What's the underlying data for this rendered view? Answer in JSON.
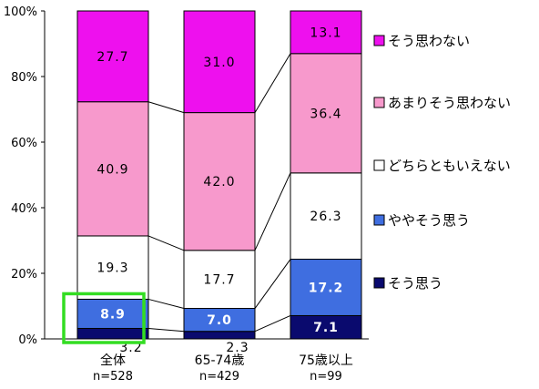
{
  "chart_data": {
    "type": "bar",
    "stacked": true,
    "percent": true,
    "ylim": [
      0,
      100
    ],
    "yticks": [
      "0%",
      "20%",
      "40%",
      "60%",
      "80%",
      "100%"
    ],
    "categories": [
      "全体",
      "65-74歳",
      "75歳以上"
    ],
    "category_n": [
      "n=528",
      "n=429",
      "n=99"
    ],
    "series": [
      {
        "name": "そう思う",
        "color": "#0a0a6e",
        "label_color": "#ffffff",
        "values": [
          3.2,
          2.3,
          7.1
        ],
        "labels": [
          "3.2",
          "2.3",
          "7.1"
        ]
      },
      {
        "name": "ややそう思う",
        "color": "#3f6ee0",
        "label_color": "#ffffff",
        "values": [
          8.9,
          7.0,
          17.2
        ],
        "labels": [
          "8.9",
          "7.0",
          "17.2"
        ]
      },
      {
        "name": "どちらともいえない",
        "color": "#ffffff",
        "label_color": "#000000",
        "values": [
          19.3,
          17.7,
          26.3
        ],
        "labels": [
          "19.3",
          "17.7",
          "26.3"
        ]
      },
      {
        "name": "あまりそう思わない",
        "color": "#f799cc",
        "label_color": "#000000",
        "values": [
          40.9,
          42.0,
          36.4
        ],
        "labels": [
          "40.9",
          "42.0",
          "36.4"
        ]
      },
      {
        "name": "そう思わない",
        "color": "#ee10ee",
        "label_color": "#000000",
        "values": [
          27.7,
          31.0,
          13.1
        ],
        "labels": [
          "27.7",
          "31.0",
          "13.1"
        ]
      }
    ],
    "highlight": {
      "category_index": 0,
      "series_indices": [
        0,
        1
      ],
      "color": "#33dd22"
    },
    "legend_position": "right"
  }
}
